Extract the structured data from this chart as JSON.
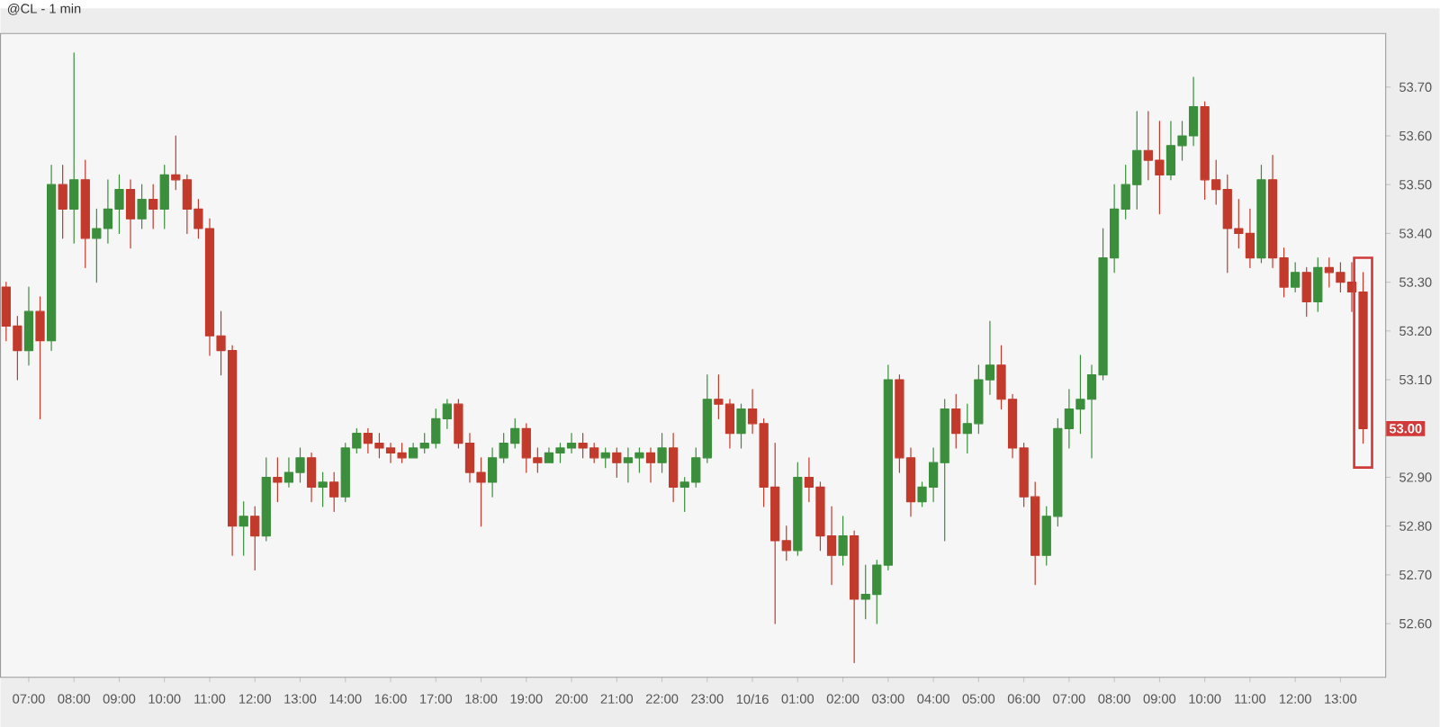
{
  "chart_data": {
    "type": "candlestick",
    "title": "@CL - 1 min",
    "categories": [
      null,
      null,
      "07:00",
      null,
      null,
      null,
      "08:00",
      null,
      null,
      null,
      "09:00",
      null,
      null,
      null,
      "10:00",
      null,
      null,
      null,
      "11:00",
      null,
      null,
      null,
      "12:00",
      null,
      null,
      null,
      "13:00",
      null,
      null,
      null,
      "14:00",
      null,
      null,
      null,
      "16:00",
      null,
      null,
      null,
      "17:00",
      null,
      null,
      null,
      "18:00",
      null,
      null,
      null,
      "19:00",
      null,
      null,
      null,
      "20:00",
      null,
      null,
      null,
      "21:00",
      null,
      null,
      null,
      "22:00",
      null,
      null,
      null,
      "23:00",
      null,
      null,
      null,
      "10/16",
      null,
      null,
      null,
      "01:00",
      null,
      null,
      null,
      "02:00",
      null,
      null,
      null,
      "03:00",
      null,
      null,
      null,
      "04:00",
      null,
      null,
      null,
      "05:00",
      null,
      null,
      null,
      "06:00",
      null,
      null,
      null,
      "07:00",
      null,
      null,
      null,
      "08:00",
      null,
      null,
      null,
      "09:00",
      null,
      null,
      null,
      "10:00",
      null,
      null,
      null,
      "11:00",
      null,
      null,
      null,
      "12:00",
      null,
      null,
      null,
      "13:00",
      null,
      null
    ],
    "ohlc": [
      [
        53.29,
        53.3,
        53.18,
        53.21
      ],
      [
        53.21,
        53.23,
        53.1,
        53.16
      ],
      [
        53.16,
        53.29,
        53.13,
        53.24
      ],
      [
        53.24,
        53.27,
        53.02,
        53.18
      ],
      [
        53.18,
        53.54,
        53.16,
        53.5
      ],
      [
        53.5,
        53.54,
        53.39,
        53.45
      ],
      [
        53.45,
        53.77,
        53.38,
        53.51
      ],
      [
        53.51,
        53.55,
        53.33,
        53.39
      ],
      [
        53.39,
        53.45,
        53.3,
        53.41
      ],
      [
        53.41,
        53.51,
        53.38,
        53.45
      ],
      [
        53.45,
        53.52,
        53.4,
        53.49
      ],
      [
        53.49,
        53.51,
        53.37,
        53.43
      ],
      [
        53.43,
        53.5,
        53.41,
        53.47
      ],
      [
        53.47,
        53.5,
        53.41,
        53.45
      ],
      [
        53.45,
        53.54,
        53.41,
        53.52
      ],
      [
        53.52,
        53.6,
        53.49,
        53.51
      ],
      [
        53.51,
        53.52,
        53.4,
        53.45
      ],
      [
        53.45,
        53.47,
        53.39,
        53.41
      ],
      [
        53.41,
        53.43,
        53.15,
        53.19
      ],
      [
        53.19,
        53.24,
        53.11,
        53.16
      ],
      [
        53.16,
        53.17,
        52.74,
        52.8
      ],
      [
        52.8,
        52.85,
        52.74,
        52.82
      ],
      [
        52.82,
        52.84,
        52.71,
        52.78
      ],
      [
        52.78,
        52.94,
        52.77,
        52.9
      ],
      [
        52.9,
        52.94,
        52.85,
        52.89
      ],
      [
        52.89,
        52.94,
        52.88,
        52.91
      ],
      [
        52.91,
        52.96,
        52.89,
        52.94
      ],
      [
        52.94,
        52.95,
        52.85,
        52.88
      ],
      [
        52.88,
        52.91,
        52.84,
        52.89
      ],
      [
        52.89,
        52.91,
        52.83,
        52.86
      ],
      [
        52.86,
        52.97,
        52.85,
        52.96
      ],
      [
        52.96,
        53.0,
        52.95,
        52.99
      ],
      [
        52.99,
        53.0,
        52.95,
        52.97
      ],
      [
        52.97,
        52.99,
        52.94,
        52.96
      ],
      [
        52.96,
        52.97,
        52.93,
        52.95
      ],
      [
        52.95,
        52.97,
        52.93,
        52.94
      ],
      [
        52.94,
        52.97,
        52.94,
        52.96
      ],
      [
        52.96,
        52.99,
        52.95,
        52.97
      ],
      [
        52.97,
        53.04,
        52.96,
        53.02
      ],
      [
        53.02,
        53.06,
        53.0,
        53.05
      ],
      [
        53.05,
        53.06,
        52.96,
        52.97
      ],
      [
        52.97,
        52.99,
        52.89,
        52.91
      ],
      [
        52.91,
        52.94,
        52.8,
        52.89
      ],
      [
        52.89,
        52.96,
        52.86,
        52.94
      ],
      [
        52.94,
        52.99,
        52.93,
        52.97
      ],
      [
        52.97,
        53.02,
        52.96,
        53.0
      ],
      [
        53.0,
        53.01,
        52.91,
        52.94
      ],
      [
        52.94,
        52.96,
        52.91,
        52.93
      ],
      [
        52.93,
        52.96,
        52.93,
        52.95
      ],
      [
        52.95,
        52.97,
        52.93,
        52.96
      ],
      [
        52.96,
        52.99,
        52.95,
        52.97
      ],
      [
        52.97,
        52.99,
        52.94,
        52.96
      ],
      [
        52.96,
        52.97,
        52.93,
        52.94
      ],
      [
        52.94,
        52.96,
        52.92,
        52.95
      ],
      [
        52.95,
        52.96,
        52.9,
        52.93
      ],
      [
        52.93,
        52.96,
        52.89,
        52.94
      ],
      [
        52.94,
        52.96,
        52.91,
        52.95
      ],
      [
        52.95,
        52.96,
        52.89,
        52.93
      ],
      [
        52.93,
        52.99,
        52.91,
        52.96
      ],
      [
        52.96,
        52.99,
        52.85,
        52.88
      ],
      [
        52.88,
        52.9,
        52.83,
        52.89
      ],
      [
        52.89,
        52.96,
        52.88,
        52.94
      ],
      [
        52.94,
        53.11,
        52.93,
        53.06
      ],
      [
        53.06,
        53.11,
        53.02,
        53.05
      ],
      [
        53.05,
        53.06,
        52.96,
        52.99
      ],
      [
        52.99,
        53.05,
        52.96,
        53.04
      ],
      [
        53.04,
        53.08,
        52.99,
        53.01
      ],
      [
        53.01,
        53.02,
        52.84,
        52.88
      ],
      [
        52.88,
        52.97,
        52.6,
        52.77
      ],
      [
        52.77,
        52.8,
        52.73,
        52.75
      ],
      [
        52.75,
        52.93,
        52.74,
        52.9
      ],
      [
        52.9,
        52.94,
        52.85,
        52.88
      ],
      [
        52.88,
        52.89,
        52.75,
        52.78
      ],
      [
        52.78,
        52.84,
        52.68,
        52.74
      ],
      [
        52.74,
        52.82,
        52.72,
        52.78
      ],
      [
        52.78,
        52.79,
        52.52,
        52.65
      ],
      [
        52.65,
        52.72,
        52.61,
        52.66
      ],
      [
        52.66,
        52.73,
        52.6,
        52.72
      ],
      [
        52.72,
        53.13,
        52.71,
        53.1
      ],
      [
        53.1,
        53.11,
        52.91,
        52.94
      ],
      [
        52.94,
        52.96,
        52.82,
        52.85
      ],
      [
        52.85,
        52.89,
        52.84,
        52.88
      ],
      [
        52.88,
        52.96,
        52.85,
        52.93
      ],
      [
        52.93,
        53.06,
        52.77,
        53.04
      ],
      [
        53.04,
        53.07,
        52.96,
        52.99
      ],
      [
        52.99,
        53.05,
        52.95,
        53.01
      ],
      [
        53.01,
        53.13,
        52.99,
        53.1
      ],
      [
        53.1,
        53.22,
        53.07,
        53.13
      ],
      [
        53.13,
        53.17,
        53.04,
        53.06
      ],
      [
        53.06,
        53.07,
        52.94,
        52.96
      ],
      [
        52.96,
        52.97,
        52.84,
        52.86
      ],
      [
        52.86,
        52.89,
        52.68,
        52.74
      ],
      [
        52.74,
        52.84,
        52.72,
        52.82
      ],
      [
        52.82,
        53.02,
        52.8,
        53.0
      ],
      [
        53.0,
        53.08,
        52.96,
        53.04
      ],
      [
        53.04,
        53.15,
        52.99,
        53.06
      ],
      [
        53.06,
        53.13,
        52.94,
        53.11
      ],
      [
        53.11,
        53.41,
        53.1,
        53.35
      ],
      [
        53.35,
        53.5,
        53.32,
        53.45
      ],
      [
        53.45,
        53.54,
        53.43,
        53.5
      ],
      [
        53.5,
        53.65,
        53.45,
        53.57
      ],
      [
        53.57,
        53.65,
        53.51,
        53.55
      ],
      [
        53.55,
        53.63,
        53.44,
        53.52
      ],
      [
        53.52,
        53.63,
        53.51,
        53.58
      ],
      [
        53.58,
        53.63,
        53.55,
        53.6
      ],
      [
        53.6,
        53.72,
        53.58,
        53.66
      ],
      [
        53.66,
        53.67,
        53.47,
        53.51
      ],
      [
        53.51,
        53.55,
        53.46,
        53.49
      ],
      [
        53.49,
        53.52,
        53.32,
        53.41
      ],
      [
        53.41,
        53.47,
        53.37,
        53.4
      ],
      [
        53.4,
        53.45,
        53.33,
        53.35
      ],
      [
        53.35,
        53.54,
        53.34,
        53.51
      ],
      [
        53.51,
        53.56,
        53.33,
        53.35
      ],
      [
        53.35,
        53.37,
        53.27,
        53.29
      ],
      [
        53.29,
        53.34,
        53.28,
        53.32
      ],
      [
        53.32,
        53.33,
        53.23,
        53.26
      ],
      [
        53.26,
        53.35,
        53.24,
        53.33
      ],
      [
        53.33,
        53.35,
        53.29,
        53.32
      ],
      [
        53.32,
        53.34,
        53.28,
        53.3
      ],
      [
        53.3,
        53.34,
        53.24,
        53.28
      ],
      [
        53.28,
        53.32,
        52.97,
        53.0
      ]
    ],
    "colors": [
      "#c23a2b",
      "#c23a2b",
      "#3b8e3b",
      "#c23a2b",
      "#3b8e3b",
      "#c23a2b",
      "#3b8e3b",
      "#c23a2b",
      "#3b8e3b",
      "#3b8e3b",
      "#3b8e3b",
      "#c23a2b",
      "#3b8e3b",
      "#c23a2b",
      "#3b8e3b",
      "#c23a2b",
      "#c23a2b",
      "#c23a2b",
      "#c23a2b",
      "#c23a2b",
      "#c23a2b",
      "#3b8e3b",
      "#c23a2b",
      "#3b8e3b",
      "#c23a2b",
      "#3b8e3b",
      "#3b8e3b",
      "#c23a2b",
      "#3b8e3b",
      "#c23a2b",
      "#3b8e3b",
      "#3b8e3b",
      "#c23a2b",
      "#c23a2b",
      "#c23a2b",
      "#c23a2b",
      "#3b8e3b",
      "#3b8e3b",
      "#3b8e3b",
      "#3b8e3b",
      "#c23a2b",
      "#c23a2b",
      "#c23a2b",
      "#3b8e3b",
      "#3b8e3b",
      "#3b8e3b",
      "#c23a2b",
      "#c23a2b",
      "#3b8e3b",
      "#3b8e3b",
      "#3b8e3b",
      "#c23a2b",
      "#c23a2b",
      "#3b8e3b",
      "#c23a2b",
      "#3b8e3b",
      "#3b8e3b",
      "#c23a2b",
      "#3b8e3b",
      "#c23a2b",
      "#3b8e3b",
      "#3b8e3b",
      "#3b8e3b",
      "#c23a2b",
      "#c23a2b",
      "#3b8e3b",
      "#c23a2b",
      "#c23a2b",
      "#c23a2b",
      "#c23a2b",
      "#3b8e3b",
      "#c23a2b",
      "#c23a2b",
      "#c23a2b",
      "#3b8e3b",
      "#c23a2b",
      "#3b8e3b",
      "#3b8e3b",
      "#3b8e3b",
      "#c23a2b",
      "#c23a2b",
      "#3b8e3b",
      "#3b8e3b",
      "#3b8e3b",
      "#c23a2b",
      "#3b8e3b",
      "#3b8e3b",
      "#3b8e3b",
      "#c23a2b",
      "#c23a2b",
      "#c23a2b",
      "#c23a2b",
      "#3b8e3b",
      "#3b8e3b",
      "#3b8e3b",
      "#3b8e3b",
      "#3b8e3b",
      "#3b8e3b",
      "#3b8e3b",
      "#3b8e3b",
      "#3b8e3b",
      "#c23a2b",
      "#c23a2b",
      "#3b8e3b",
      "#3b8e3b",
      "#3b8e3b",
      "#c23a2b",
      "#c23a2b",
      "#c23a2b",
      "#c23a2b",
      "#c23a2b",
      "#3b8e3b",
      "#c23a2b",
      "#c23a2b",
      "#3b8e3b",
      "#c23a2b",
      "#3b8e3b",
      "#c23a2b",
      "#c23a2b",
      "#c23a2b",
      "#c23a2b"
    ],
    "ylim": [
      52.49,
      53.81
    ],
    "yticks": [
      {
        "value": 52.6,
        "label": "52.60"
      },
      {
        "value": 52.7,
        "label": "52.70"
      },
      {
        "value": 52.8,
        "label": "52.80"
      },
      {
        "value": 52.9,
        "label": "52.90"
      },
      {
        "value": 53.0,
        "label": null
      },
      {
        "value": 53.1,
        "label": "53.10"
      },
      {
        "value": 53.2,
        "label": "53.20"
      },
      {
        "value": 53.3,
        "label": "53.30"
      },
      {
        "value": 53.4,
        "label": "53.40"
      },
      {
        "value": 53.5,
        "label": "53.50"
      },
      {
        "value": 53.6,
        "label": "53.60"
      },
      {
        "value": 53.7,
        "label": "53.70"
      }
    ],
    "annotations": [
      {
        "text": "53.00",
        "y": 53.0
      }
    ]
  }
}
